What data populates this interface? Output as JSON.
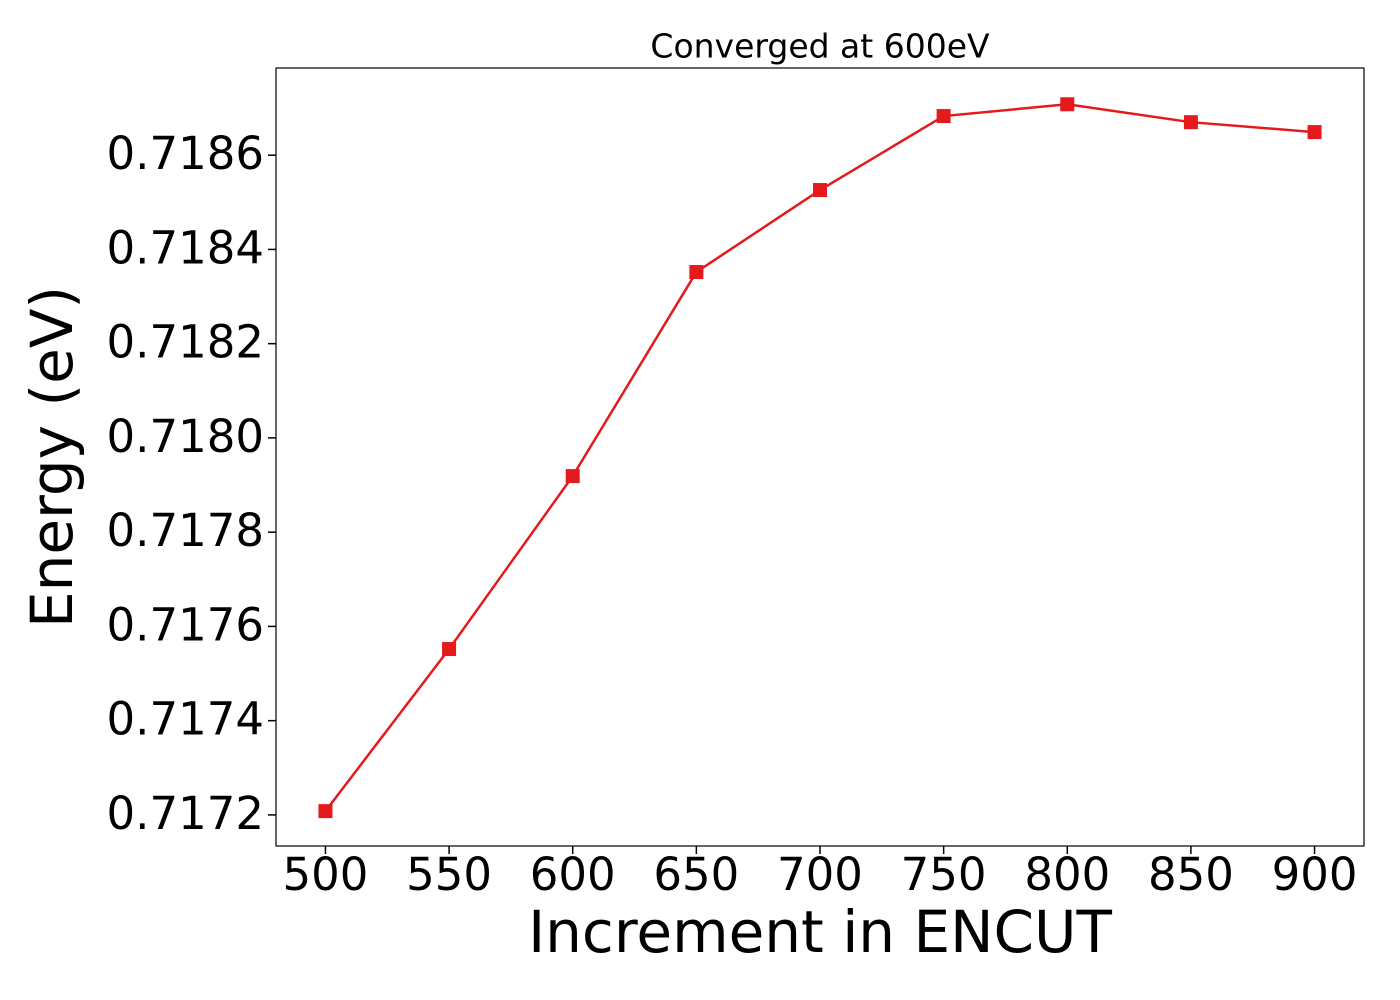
{
  "chart_data": {
    "type": "line",
    "title": "Converged at 600eV",
    "xlabel": "Increment in ENCUT",
    "ylabel": "Energy (eV)",
    "x": [
      500,
      550,
      600,
      650,
      700,
      750,
      800,
      850,
      900
    ],
    "values": [
      0.717208,
      0.717552,
      0.717919,
      0.718352,
      0.718526,
      0.718683,
      0.718708,
      0.71867,
      0.718649
    ],
    "color": "#e41a1c",
    "marker": "square",
    "xlim": [
      480,
      920
    ],
    "xticks": [
      500,
      550,
      600,
      650,
      700,
      750,
      800,
      850,
      900
    ],
    "ylim": [
      0.717134,
      0.718785
    ],
    "yticks": [
      0.7172,
      0.7174,
      0.7176,
      0.7178,
      {
        "value": 0.718,
        "label": "0.7180"
      },
      0.7182,
      0.7184,
      0.7186
    ],
    "grid": false
  }
}
